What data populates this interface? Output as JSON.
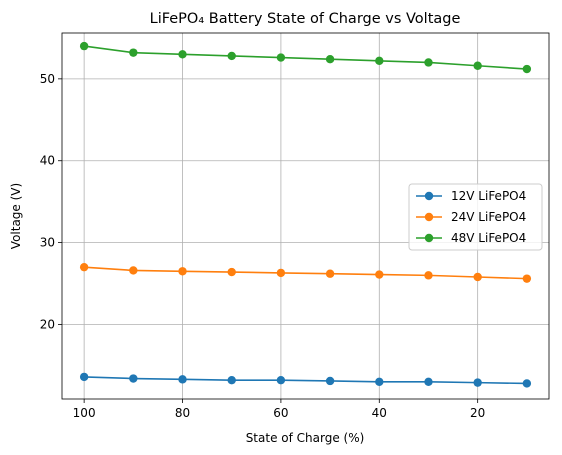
{
  "chart_data": {
    "type": "line",
    "title": "LiFePO₄ Battery State of Charge vs Voltage",
    "xlabel": "State of Charge (%)",
    "ylabel": "Voltage (V)",
    "x": [
      100,
      90,
      80,
      70,
      60,
      50,
      40,
      30,
      20,
      10
    ],
    "xlim": [
      104.5,
      5.5
    ],
    "ylim": [
      10.9,
      55.6
    ],
    "xticks": [
      100,
      80,
      60,
      40,
      20
    ],
    "yticks": [
      20,
      30,
      40,
      50
    ],
    "grid": true,
    "legend_position": "center-right",
    "series": [
      {
        "name": "12V LiFePO4",
        "color": "#1f77b4",
        "values": [
          13.6,
          13.4,
          13.3,
          13.2,
          13.2,
          13.1,
          13.0,
          13.0,
          12.9,
          12.8
        ]
      },
      {
        "name": "24V LiFePO4",
        "color": "#ff7f0e",
        "values": [
          27.0,
          26.6,
          26.5,
          26.4,
          26.3,
          26.2,
          26.1,
          26.0,
          25.8,
          25.6
        ]
      },
      {
        "name": "48V LiFePO4",
        "color": "#2ca02c",
        "values": [
          54.0,
          53.2,
          53.0,
          52.8,
          52.6,
          52.4,
          52.2,
          52.0,
          51.6,
          51.2
        ]
      }
    ]
  }
}
